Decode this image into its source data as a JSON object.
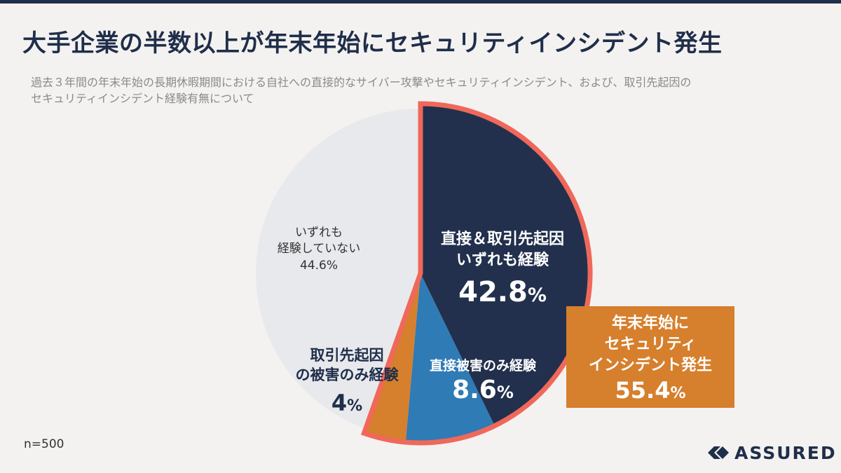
{
  "title": "大手企業の半数以上が年末年始にセキュリティインシデント発生",
  "subtitle": "過去３年間の年末年始の長期休暇期間における自社への直接的なサイバー攻撃やセキュリティインシデント、および、取引先起因の\nセキュリティインシデント経験有無について",
  "footnote": "n=500",
  "brand": "ASSURED",
  "chart_data": {
    "type": "pie",
    "title": "大手企業の半数以上が年末年始にセキュリティインシデント発生",
    "n": 500,
    "start": "12 o'clock, clockwise",
    "slices": [
      {
        "key": "both",
        "label_lines": [
          "直接＆取引先起因",
          "いずれも経験"
        ],
        "value": 42.8,
        "value_text": "42.8",
        "pct": "%",
        "color": "#22304d",
        "label_color": "#ffffff"
      },
      {
        "key": "direct",
        "label_lines": [
          "直接被害のみ経験"
        ],
        "value": 8.6,
        "value_text": "8.6",
        "pct": "%",
        "color": "#2f7bb5",
        "label_color": "#ffffff"
      },
      {
        "key": "partner",
        "label_lines": [
          "取引先起因",
          "の被害のみ経験"
        ],
        "value": 4,
        "value_text": "4",
        "pct": "%",
        "color": "#d67f2d",
        "label_color": "#1f2e4a"
      },
      {
        "key": "none",
        "label_lines": [
          "いずれも",
          "経験していない"
        ],
        "value": 44.6,
        "value_text": "44.6",
        "pct": "%",
        "color": "#e8e9ec",
        "label_color": "#333333"
      }
    ],
    "highlight": {
      "lines": [
        "年末年始に",
        "セキュリティ",
        "インシデント発生"
      ],
      "value": 55.4,
      "value_text": "55.4",
      "pct": "%",
      "border_color": "#f0685a",
      "fill_color": "#d67f2d"
    }
  }
}
